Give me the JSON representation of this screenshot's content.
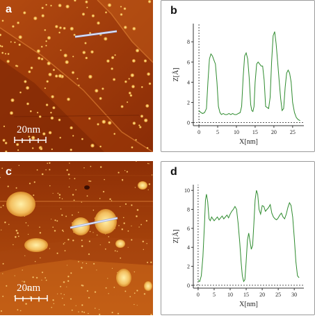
{
  "panels": {
    "a": {
      "letter": "a",
      "scale_label": "20nm"
    },
    "b": {
      "letter": "b"
    },
    "c": {
      "letter": "c",
      "scale_label": "20nm"
    },
    "d": {
      "letter": "d"
    }
  },
  "chart_data": [
    {
      "panel": "b",
      "type": "line",
      "xlabel": "X[nm]",
      "ylabel": "Z[Å]",
      "xlim": [
        -1.5,
        28
      ],
      "ylim": [
        -0.3,
        9.8
      ],
      "x_ticks": [
        0,
        5,
        10,
        15,
        20,
        25
      ],
      "y_ticks": [
        0,
        2,
        4,
        6,
        8
      ],
      "grid": false,
      "reference_lines": [
        "vertical dashed at x=0",
        "horizontal dashed at y=0"
      ],
      "color": "#2e8b2e",
      "x": [
        0,
        0.5,
        1.0,
        1.5,
        2.0,
        2.4,
        2.8,
        3.2,
        3.6,
        4.0,
        4.4,
        4.8,
        5.2,
        5.6,
        6.0,
        6.5,
        7.0,
        7.5,
        8.0,
        8.5,
        9.0,
        9.5,
        10.0,
        10.5,
        11.0,
        11.4,
        11.8,
        12.2,
        12.6,
        13.0,
        13.4,
        13.8,
        14.1,
        14.4,
        14.7,
        15.0,
        15.4,
        15.8,
        16.2,
        16.6,
        17.0,
        17.4,
        17.8,
        18.2,
        18.6,
        19.0,
        19.4,
        19.8,
        20.2,
        20.6,
        21.0,
        21.4,
        21.8,
        22.2,
        22.6,
        23.0,
        23.4,
        23.8,
        24.2,
        24.6,
        25.0,
        25.5,
        26.0,
        26.5,
        27.0
      ],
      "y": [
        1.2,
        1.0,
        0.9,
        1.0,
        1.4,
        4.0,
        6.3,
        6.8,
        6.6,
        6.2,
        5.8,
        4.0,
        1.6,
        1.0,
        0.8,
        0.9,
        0.8,
        0.8,
        0.9,
        0.8,
        0.9,
        0.8,
        0.8,
        0.9,
        1.0,
        1.6,
        4.5,
        6.6,
        6.9,
        6.3,
        4.5,
        1.8,
        1.2,
        1.1,
        1.6,
        4.0,
        5.8,
        6.0,
        5.8,
        5.6,
        5.6,
        4.2,
        1.6,
        1.5,
        1.4,
        2.5,
        6.0,
        8.6,
        9.0,
        7.8,
        6.0,
        4.2,
        2.4,
        1.2,
        1.4,
        3.5,
        4.9,
        5.2,
        4.9,
        4.0,
        2.0,
        1.0,
        0.5,
        0.3,
        0.2
      ]
    },
    {
      "panel": "d",
      "type": "line",
      "xlabel": "X[nm]",
      "ylabel": "Z[Å]",
      "xlim": [
        -1.5,
        33
      ],
      "ylim": [
        -0.3,
        10.6
      ],
      "x_ticks": [
        0,
        5,
        10,
        15,
        20,
        25,
        30
      ],
      "y_ticks": [
        0,
        2,
        4,
        6,
        8,
        10
      ],
      "grid": false,
      "reference_lines": [
        "vertical dashed at x=0",
        "horizontal dashed at y=0"
      ],
      "color": "#2e8b2e",
      "x": [
        0,
        0.5,
        1.0,
        1.5,
        2.0,
        2.3,
        2.6,
        3.0,
        3.4,
        3.8,
        4.2,
        4.6,
        5.0,
        5.5,
        6.0,
        6.5,
        7.0,
        7.5,
        8.0,
        8.5,
        9.0,
        9.5,
        10.0,
        10.5,
        11.0,
        11.5,
        12.0,
        12.5,
        13.0,
        13.4,
        13.8,
        14.2,
        14.6,
        15.0,
        15.4,
        15.8,
        16.2,
        16.6,
        17.0,
        17.4,
        17.8,
        18.2,
        18.6,
        19.0,
        19.5,
        20.0,
        20.5,
        21.0,
        21.5,
        22.0,
        22.5,
        23.0,
        23.5,
        24.0,
        24.5,
        25.0,
        25.5,
        26.0,
        26.5,
        27.0,
        27.5,
        28.0,
        28.5,
        29.0,
        29.5,
        30.0,
        30.5,
        31.0,
        31.5
      ],
      "y": [
        0.5,
        0.4,
        1.0,
        3.0,
        6.5,
        9.0,
        9.6,
        8.8,
        7.0,
        6.8,
        7.2,
        7.0,
        6.8,
        7.0,
        7.2,
        6.9,
        7.1,
        7.3,
        7.0,
        7.2,
        7.4,
        7.1,
        7.5,
        7.8,
        8.0,
        8.3,
        8.0,
        6.5,
        4.5,
        2.5,
        1.0,
        0.4,
        0.6,
        2.5,
        4.8,
        5.5,
        4.6,
        3.8,
        4.2,
        6.5,
        9.0,
        10.0,
        9.6,
        8.0,
        7.5,
        8.4,
        8.3,
        7.8,
        8.0,
        8.2,
        8.5,
        7.6,
        7.2,
        7.0,
        6.9,
        7.1,
        7.4,
        7.6,
        7.2,
        7.0,
        7.5,
        8.2,
        8.7,
        8.4,
        7.2,
        5.0,
        2.5,
        1.0,
        0.8
      ]
    }
  ]
}
